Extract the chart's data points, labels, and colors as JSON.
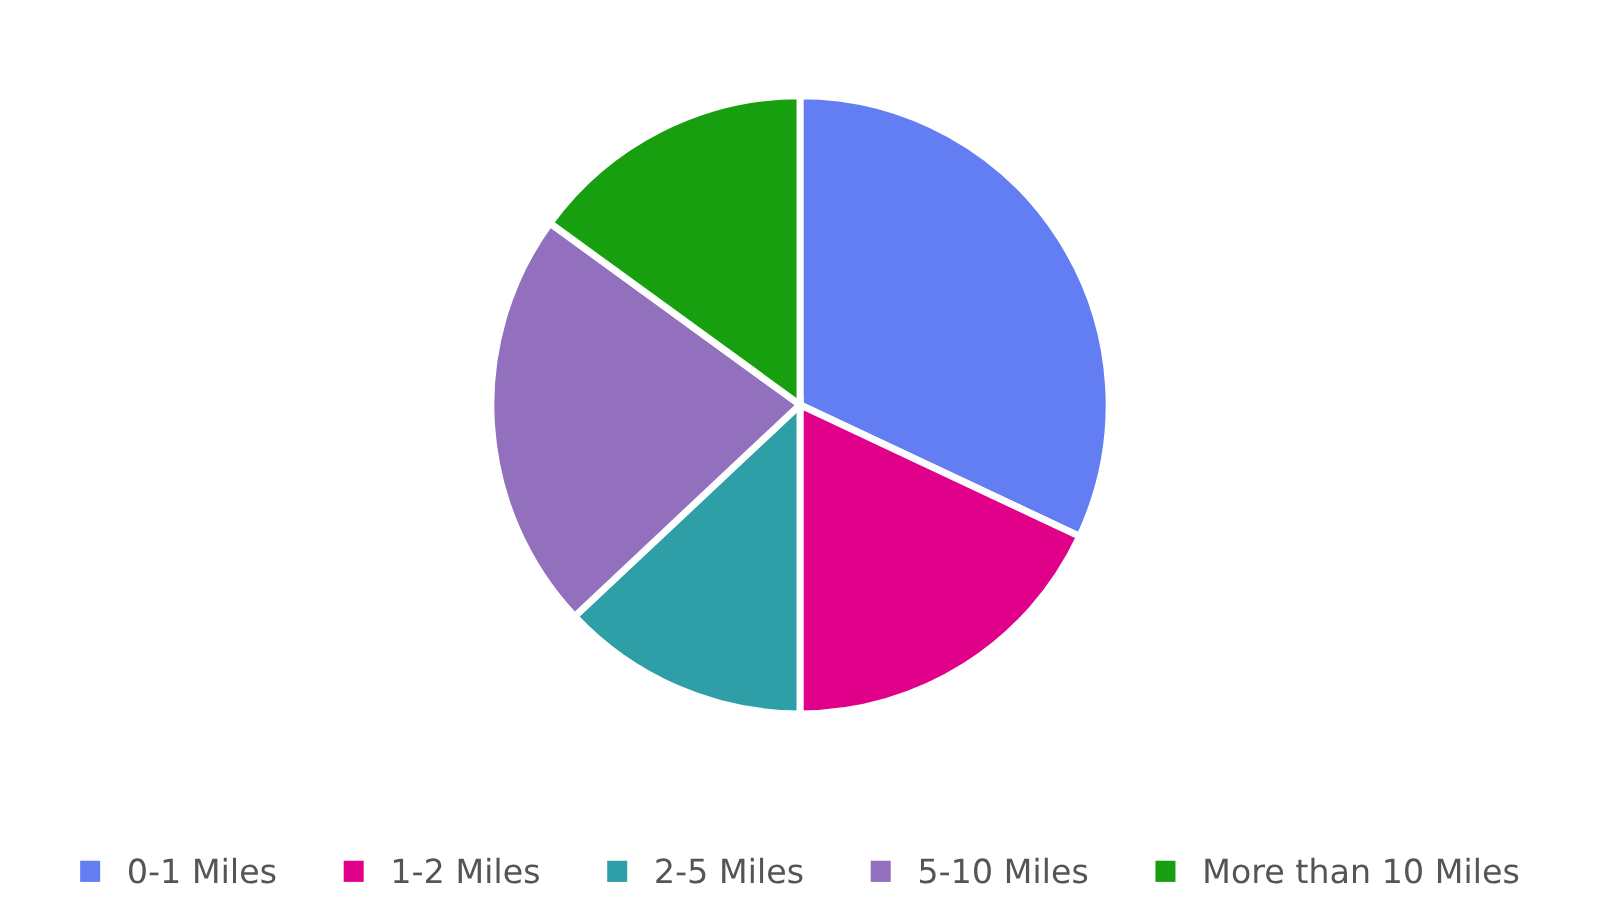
{
  "chart_data": {
    "type": "pie",
    "categories": [
      "0-1 Miles",
      "1-2 Miles",
      "2-5 Miles",
      "5-10 Miles",
      "More than 10 Miles"
    ],
    "values": [
      32,
      18,
      13,
      22,
      15
    ],
    "colors": [
      "#637ef2",
      "#e0008a",
      "#2e9fa6",
      "#9270be",
      "#179f10"
    ],
    "legend": "bottom"
  }
}
